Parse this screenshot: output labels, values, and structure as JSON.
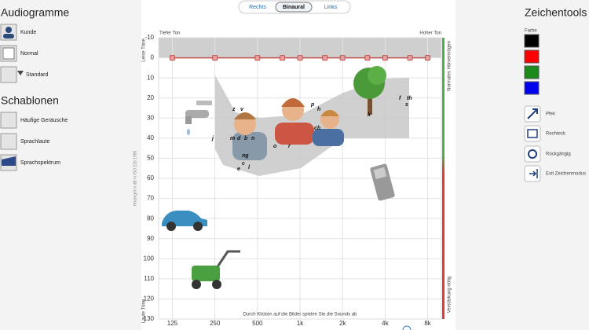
{
  "tabs": {
    "items": [
      "Rechts",
      "Binaural",
      "Links"
    ],
    "active": 1
  },
  "left_panel": {
    "audiograms_title": "Audiogramme",
    "audiograms": [
      "Kunde",
      "Normal",
      "Standard"
    ],
    "templates_title": "Schablonen",
    "templates": [
      "Häufige Geräusche",
      "Sprachlaute",
      "Sprachspektrum"
    ]
  },
  "right_panel": {
    "title": "Zeichentools",
    "color_label": "Farbe",
    "colors": [
      "#000000",
      "#ff0000",
      "#1a8a1a",
      "#0000ee"
    ],
    "tools": [
      "Pfeil",
      "Rechteck",
      "Rückgängig",
      "Exit Zeichenmodus"
    ]
  },
  "chart_data": {
    "type": "line",
    "x_top_left": "Tiefer Ton",
    "x_top_right": "Hoher Ton",
    "y_label": "Hörpegel in dB in ISO 226 1996",
    "y_top_label": "Leise Töne",
    "y_bottom_label": "Laute Töne",
    "right_top_label": "Normales Hörvermögen",
    "right_bottom_label": "Verstärkung nötig",
    "note": "Durch Klicken auf die Bilder spielen Sie die Sounds ab",
    "x": [
      125,
      250,
      500,
      750,
      1000,
      1500,
      2000,
      3000,
      4000,
      6000,
      8000
    ],
    "series": [
      {
        "color": "#c0504d",
        "values": [
          0,
          0,
          0,
          0,
          0,
          0,
          0,
          0,
          0,
          0,
          0
        ]
      }
    ],
    "xlim": [
      100,
      10000
    ],
    "xscale": "log",
    "xticks": [
      125,
      250,
      500,
      {
        "value": 1000,
        "label": "1k"
      },
      {
        "value": 2000,
        "label": "2k"
      },
      {
        "value": 4000,
        "label": "4k"
      },
      {
        "value": 8000,
        "label": "8k"
      }
    ],
    "ylim": [
      -10,
      130
    ],
    "y_inverted": true,
    "yticks": [
      -10,
      0,
      10,
      20,
      30,
      40,
      50,
      60,
      70,
      80,
      90,
      100,
      110,
      120,
      130
    ],
    "grid": true,
    "speech_sounds": [
      "z",
      "v",
      "p",
      "h",
      "f",
      "th",
      "s",
      "k",
      "ch",
      "j",
      "m",
      "d",
      "b",
      "n",
      "ng",
      "o",
      "r",
      "c",
      "e",
      "l"
    ]
  }
}
